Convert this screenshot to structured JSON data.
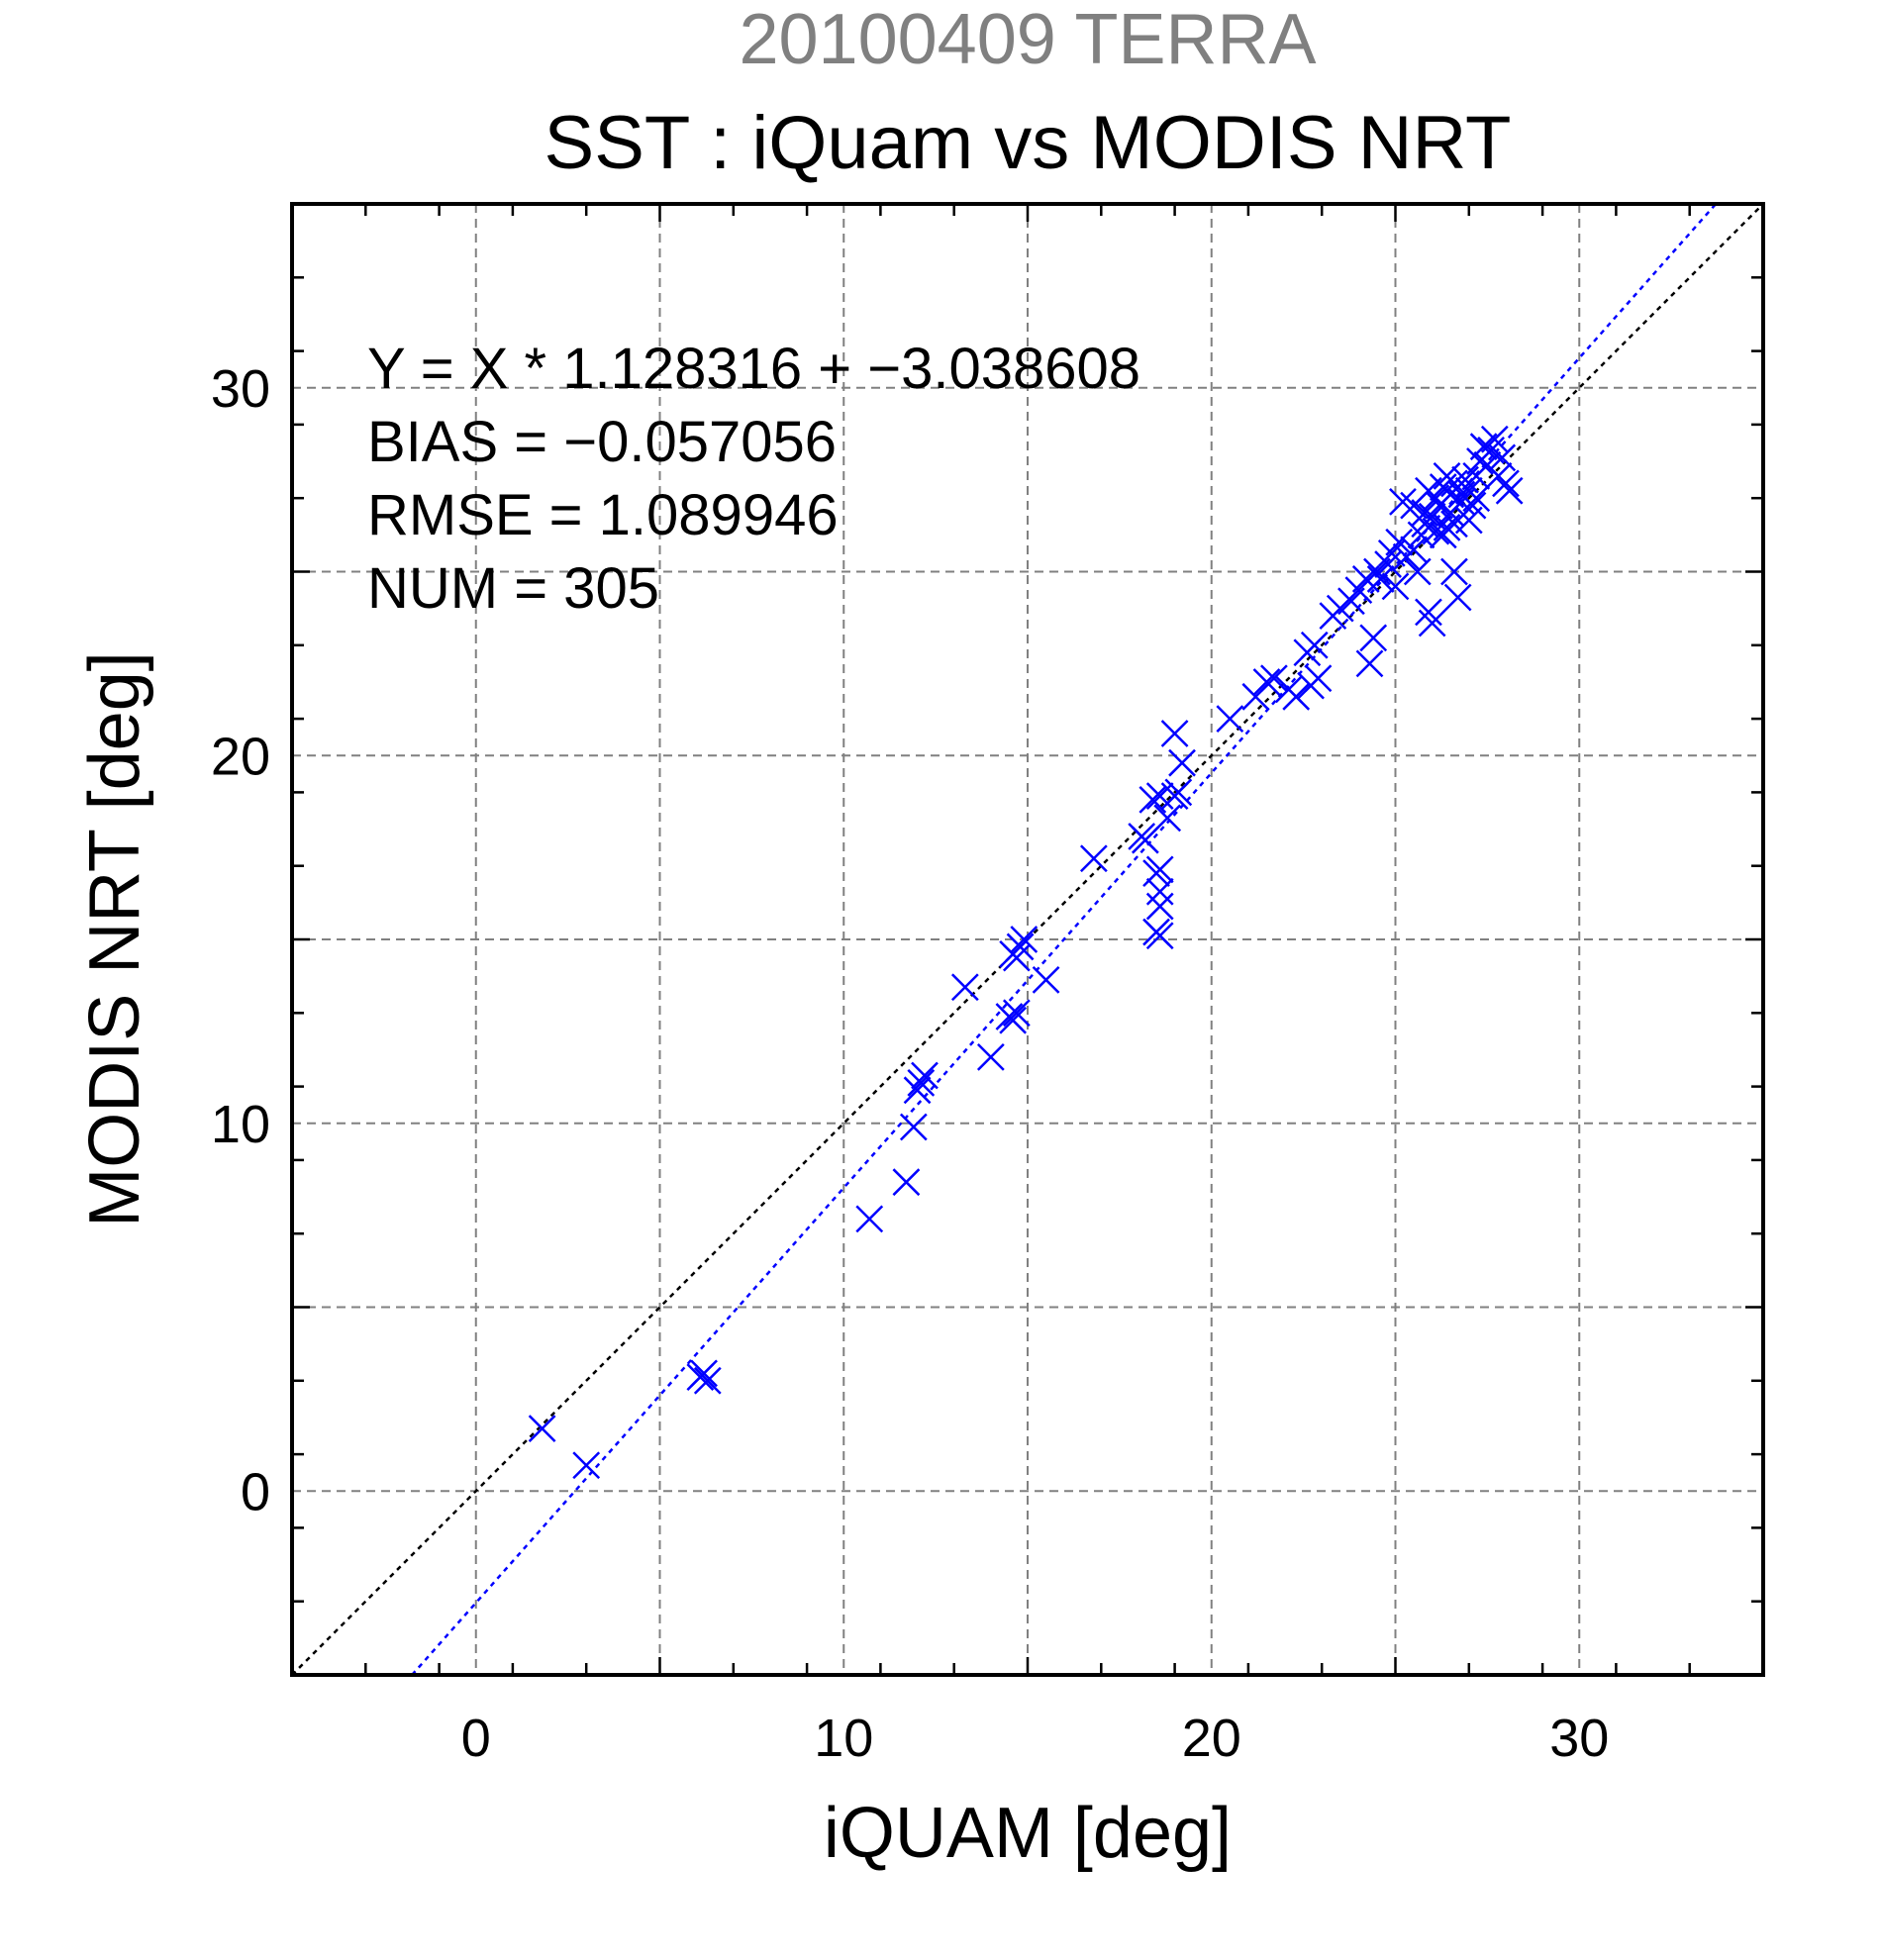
{
  "chart_data": {
    "type": "scatter",
    "title": "SST : iQuam vs MODIS NRT",
    "subtitle": "20100409 TERRA",
    "xlabel": "iQUAM [deg]",
    "ylabel": "MODIS NRT [deg]",
    "xlim": [
      -5,
      35
    ],
    "ylim": [
      -5,
      35
    ],
    "x_ticks": [
      0,
      10,
      20,
      30
    ],
    "y_ticks": [
      0,
      10,
      20,
      30
    ],
    "grid": true,
    "stats": {
      "regression": "Y = X * 1.128316 + −3.038608",
      "bias": "BIAS = −0.057056",
      "rmse": "RMSE = 1.089946",
      "num": "NUM = 305"
    },
    "reference_lines": [
      {
        "kind": "one-to-one",
        "slope": 1.0,
        "intercept": 0.0,
        "color": "#000000"
      },
      {
        "kind": "regression",
        "slope": 1.128316,
        "intercept": -3.038608,
        "color": "#0000ff"
      }
    ],
    "series": [
      {
        "color": "#0000ff",
        "marker": "x",
        "points": [
          [
            1.8,
            1.7
          ],
          [
            3.0,
            0.7
          ],
          [
            6.2,
            3.2
          ],
          [
            6.1,
            3.1
          ],
          [
            6.3,
            3.0
          ],
          [
            10.7,
            7.4
          ],
          [
            11.7,
            8.4
          ],
          [
            11.9,
            9.9
          ],
          [
            12.0,
            10.9
          ],
          [
            12.2,
            11.3
          ],
          [
            12.1,
            11.1
          ],
          [
            13.3,
            13.7
          ],
          [
            14.0,
            11.8
          ],
          [
            14.5,
            12.9
          ],
          [
            14.6,
            12.8
          ],
          [
            14.7,
            13.0
          ],
          [
            14.7,
            14.5
          ],
          [
            14.8,
            14.8
          ],
          [
            14.9,
            15.0
          ],
          [
            14.6,
            14.6
          ],
          [
            15.5,
            13.9
          ],
          [
            16.8,
            17.2
          ],
          [
            18.1,
            17.8
          ],
          [
            18.2,
            17.7
          ],
          [
            18.4,
            18.8
          ],
          [
            18.6,
            18.9
          ],
          [
            18.5,
            16.8
          ],
          [
            18.6,
            16.9
          ],
          [
            18.6,
            16.3
          ],
          [
            18.6,
            15.9
          ],
          [
            18.5,
            15.2
          ],
          [
            18.6,
            15.1
          ],
          [
            18.8,
            18.3
          ],
          [
            19.0,
            18.9
          ],
          [
            19.1,
            19.0
          ],
          [
            19.2,
            19.8
          ],
          [
            19.0,
            20.6
          ],
          [
            20.5,
            21.0
          ],
          [
            21.2,
            21.6
          ],
          [
            21.5,
            22.0
          ],
          [
            21.7,
            22.1
          ],
          [
            22.1,
            21.8
          ],
          [
            22.3,
            21.6
          ],
          [
            22.6,
            22.8
          ],
          [
            22.8,
            23.0
          ],
          [
            22.7,
            21.9
          ],
          [
            22.9,
            22.1
          ],
          [
            23.3,
            23.8
          ],
          [
            23.5,
            24.0
          ],
          [
            23.8,
            24.2
          ],
          [
            24.0,
            24.5
          ],
          [
            24.2,
            24.8
          ],
          [
            24.4,
            23.2
          ],
          [
            24.3,
            22.5
          ],
          [
            24.5,
            25.0
          ],
          [
            24.6,
            24.8
          ],
          [
            24.8,
            25.2
          ],
          [
            24.9,
            25.5
          ],
          [
            25.0,
            24.6
          ],
          [
            25.1,
            25.8
          ],
          [
            25.2,
            26.9
          ],
          [
            25.3,
            25.4
          ],
          [
            25.5,
            25.6
          ],
          [
            25.6,
            25.0
          ],
          [
            25.7,
            26.0
          ],
          [
            25.8,
            26.3
          ],
          [
            25.9,
            23.9
          ],
          [
            26.0,
            23.6
          ],
          [
            26.0,
            26.5
          ],
          [
            26.1,
            27.0
          ],
          [
            26.2,
            26.8
          ],
          [
            26.3,
            27.3
          ],
          [
            26.4,
            26.2
          ],
          [
            26.5,
            27.1
          ],
          [
            26.5,
            26.6
          ],
          [
            26.6,
            27.4
          ],
          [
            26.6,
            25.0
          ],
          [
            26.7,
            24.3
          ],
          [
            26.8,
            26.9
          ],
          [
            26.9,
            27.5
          ],
          [
            27.0,
            27.2
          ],
          [
            27.1,
            26.8
          ],
          [
            27.2,
            27.6
          ],
          [
            27.3,
            28.0
          ],
          [
            27.4,
            28.4
          ],
          [
            27.5,
            27.9
          ],
          [
            27.6,
            28.3
          ],
          [
            27.7,
            28.6
          ],
          [
            27.8,
            27.6
          ],
          [
            27.9,
            28.1
          ],
          [
            28.0,
            27.4
          ],
          [
            28.1,
            27.2
          ],
          [
            25.8,
            26.6
          ],
          [
            26.1,
            26.1
          ],
          [
            26.3,
            26.0
          ],
          [
            26.4,
            27.6
          ],
          [
            26.6,
            26.3
          ],
          [
            26.8,
            27.1
          ],
          [
            27.0,
            26.4
          ],
          [
            27.2,
            27.0
          ],
          [
            25.5,
            26.8
          ],
          [
            25.9,
            27.2
          ]
        ]
      }
    ]
  }
}
